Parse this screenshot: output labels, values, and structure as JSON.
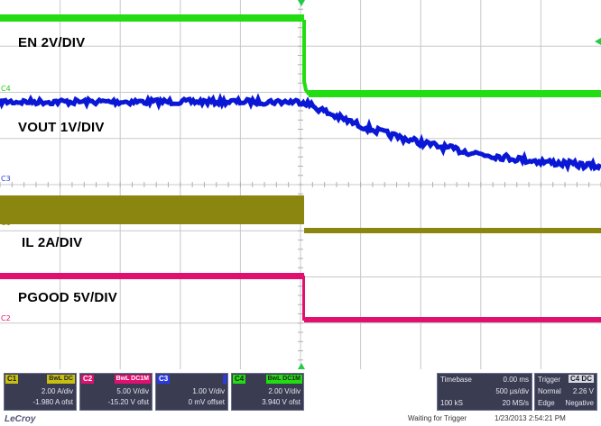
{
  "traces": {
    "en": {
      "label": "EN 2V/DIV",
      "color": "#22dd11"
    },
    "vout": {
      "label": "VOUT 1V/DIV",
      "color": "#0a18d6"
    },
    "il": {
      "label": "IL 2A/DIV",
      "color": "#8a8610"
    },
    "pgood": {
      "label": "PGOOD 5V/DIV",
      "color": "#e0106e"
    }
  },
  "markers": {
    "c4": "C4",
    "c3": "C3",
    "c1": "C1",
    "c2": "C2"
  },
  "channels": [
    {
      "id": "C1",
      "tag": "BwL DC",
      "scale": "2.00 A/div",
      "offset": "-1.980 A ofst",
      "color": "#c8c010"
    },
    {
      "id": "C2",
      "tag": "BwL DC1M",
      "scale": "5.00 V/div",
      "offset": "-15.20 V ofst",
      "color": "#e0106e"
    },
    {
      "id": "C3",
      "tag": "",
      "scale": "1.00 V/div",
      "offset": "0 mV offset",
      "color": "#2a3ae0"
    },
    {
      "id": "C4",
      "tag": "BwL DC1M",
      "scale": "2.00 V/div",
      "offset": "3.940 V ofst",
      "color": "#22dd11"
    }
  ],
  "timebase": {
    "label": "Timebase",
    "offset": "0.00 ms",
    "per_div": "500 µs/div",
    "samples": "100 kS",
    "rate": "20 MS/s"
  },
  "trigger": {
    "label": "Trigger",
    "channel": "C4 DC",
    "mode": "Normal",
    "level": "2.26 V",
    "type": "Edge",
    "slope": "Negative"
  },
  "status": "Waiting for Trigger",
  "datetime": "1/23/2013 2:54:21 PM",
  "logo": "LeCroy",
  "icons": {
    "trigger_marker": "triangle-icon",
    "level_marker": "arrow-left-icon"
  }
}
